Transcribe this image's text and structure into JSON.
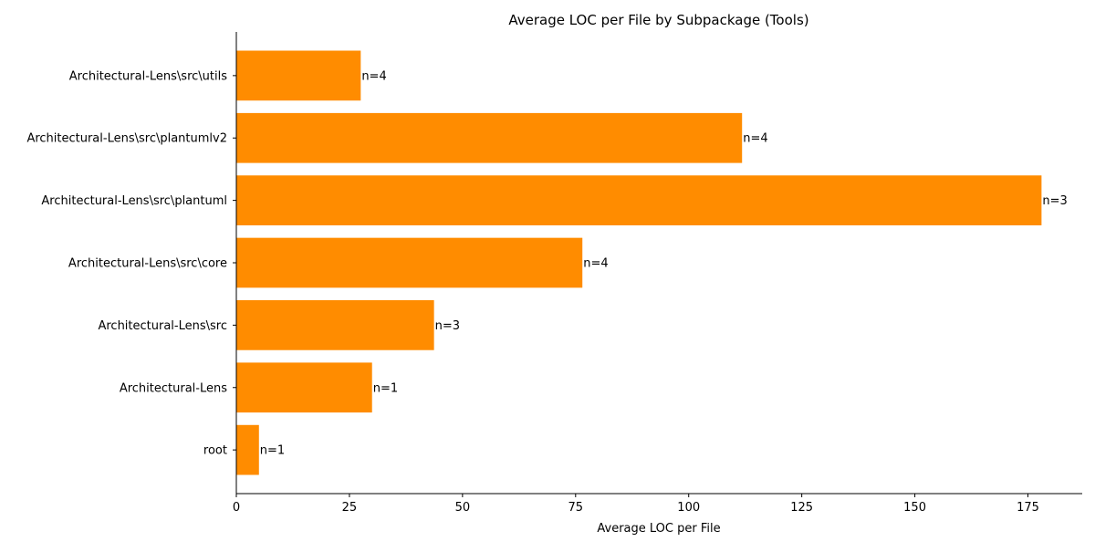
{
  "chart_data": {
    "type": "bar",
    "orientation": "horizontal",
    "title": "Average LOC per File by Subpackage (Tools)",
    "xlabel": "Average LOC per File",
    "ylabel": "",
    "xlim": [
      0,
      187
    ],
    "xticks": [
      0,
      25,
      50,
      75,
      100,
      125,
      150,
      175
    ],
    "grid": false,
    "bar_color": "#ff8c00",
    "categories": [
      "root",
      "Architectural-Lens",
      "Architectural-Lens\\src",
      "Architectural-Lens\\src\\core",
      "Architectural-Lens\\src\\plantuml",
      "Architectural-Lens\\src\\plantumlv2",
      "Architectural-Lens\\src\\utils"
    ],
    "values": [
      5,
      30,
      43.7,
      76.5,
      178,
      111.8,
      27.5
    ],
    "data_labels": [
      "n=1",
      "n=1",
      "n=3",
      "n=4",
      "n=3",
      "n=4",
      "n=4"
    ]
  }
}
